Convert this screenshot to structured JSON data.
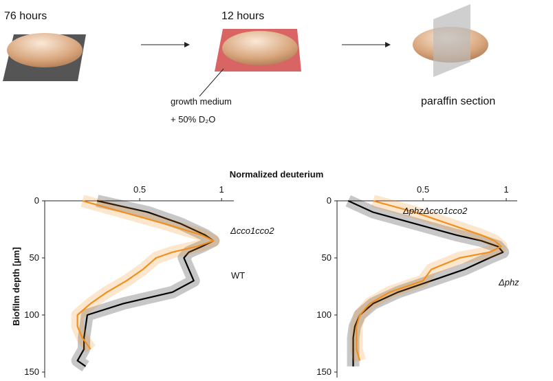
{
  "diagram": {
    "step1": "76 hours",
    "step2": "12 hours",
    "medium": "growth medium",
    "d2o": "+ 50% D₂O",
    "section": "paraffin section"
  },
  "chart_data": [
    {
      "type": "line",
      "xlabel": "Normalized deuterium",
      "ylabel": "Biofilm depth [µm]",
      "y": [
        0,
        10,
        20,
        30,
        35,
        40,
        45,
        50,
        60,
        70,
        80,
        90,
        100,
        110,
        120,
        130,
        140,
        145
      ],
      "series": [
        {
          "name": "WT",
          "color": "#000000",
          "values": [
            0.24,
            0.55,
            0.75,
            0.9,
            0.95,
            0.88,
            0.8,
            0.77,
            0.8,
            0.83,
            0.7,
            0.4,
            0.18,
            0.17,
            0.16,
            0.16,
            0.12,
            0.17
          ]
        },
        {
          "name": "Δcco1cco2",
          "color": "#f0901e",
          "values": [
            0.15,
            0.4,
            0.65,
            0.88,
            0.95,
            0.85,
            0.7,
            0.6,
            0.52,
            0.42,
            0.3,
            0.2,
            0.12,
            0.12,
            0.15,
            0.2,
            null,
            null
          ]
        }
      ],
      "xlim": [
        -0.08,
        1.075
      ],
      "xticks": [
        0.5,
        1
      ],
      "ylim": [
        0,
        150
      ],
      "yticks": [
        0,
        50,
        100,
        150
      ]
    },
    {
      "type": "line",
      "y": [
        0,
        10,
        20,
        30,
        35,
        40,
        45,
        50,
        60,
        70,
        80,
        90,
        100,
        110,
        120,
        130,
        140,
        145
      ],
      "series": [
        {
          "name": "Δphz",
          "color": "#000000",
          "values": [
            0.05,
            0.2,
            0.45,
            0.7,
            0.85,
            0.95,
            0.98,
            0.9,
            0.75,
            0.55,
            0.35,
            0.2,
            0.12,
            0.09,
            0.08,
            0.08,
            0.08,
            0.08
          ]
        },
        {
          "name": "ΔphzΔcco1cco2",
          "color": "#f0901e",
          "values": [
            0.2,
            0.45,
            0.65,
            0.85,
            0.93,
            0.97,
            0.9,
            0.72,
            0.55,
            0.5,
            0.3,
            0.18,
            0.12,
            0.1,
            0.1,
            0.1,
            0.12,
            null
          ]
        }
      ],
      "xlim": [
        -0.017,
        1.066
      ],
      "xticks": [
        0.5,
        1
      ],
      "ylim": [
        0,
        150
      ],
      "yticks": [
        0,
        50,
        100,
        150
      ]
    }
  ]
}
